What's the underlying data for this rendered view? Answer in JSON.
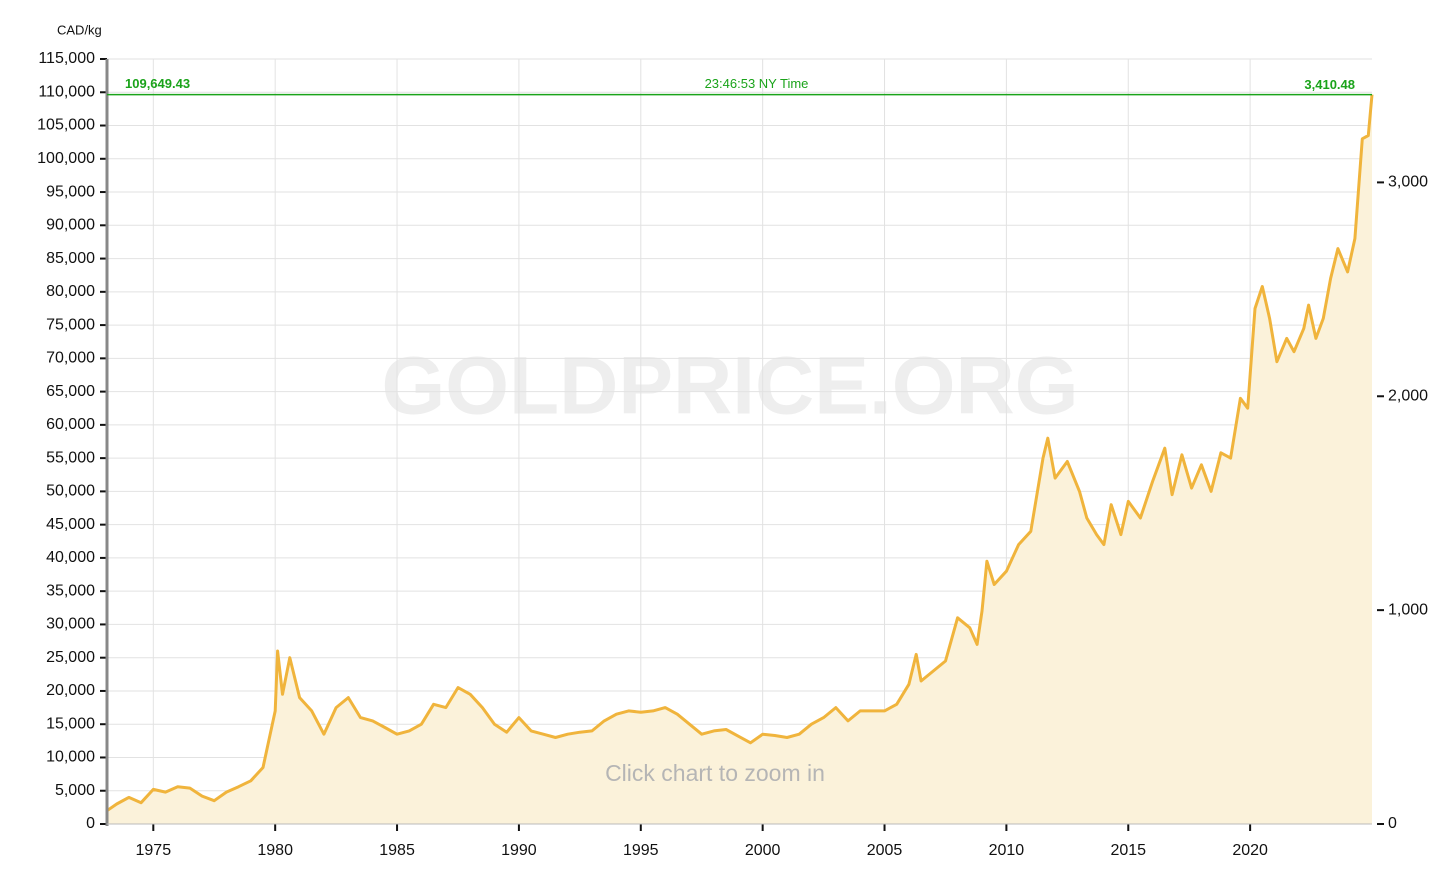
{
  "chart_data": {
    "type": "area",
    "y_label": "CAD/kg",
    "watermark": "GOLDPRICE.ORG",
    "hint": "Click chart to zoom in",
    "time_label": "23:46:53 NY Time",
    "current": {
      "value": 109649.43,
      "label": "109,649.43"
    },
    "current_oz": {
      "value": 3410.48,
      "label": "3,410.48"
    },
    "color": "#f0b43c",
    "fill": "#fbf2da",
    "current_color": "#1aa31a",
    "grid": true,
    "xlim": [
      1973.1,
      2025.0
    ],
    "xticks": [
      1975,
      1980,
      1985,
      1990,
      1995,
      2000,
      2005,
      2010,
      2015,
      2020
    ],
    "ylim": [
      0,
      115000
    ],
    "yticks": [
      0,
      {
        "value": 5000,
        "label": "5,000"
      },
      {
        "value": 10000,
        "label": "10,000"
      },
      {
        "value": 15000,
        "label": "15,000"
      },
      {
        "value": 20000,
        "label": "20,000"
      },
      {
        "value": 25000,
        "label": "25,000"
      },
      {
        "value": 30000,
        "label": "30,000"
      },
      {
        "value": 35000,
        "label": "35,000"
      },
      {
        "value": 40000,
        "label": "40,000"
      },
      {
        "value": 45000,
        "label": "45,000"
      },
      {
        "value": 50000,
        "label": "50,000"
      },
      {
        "value": 55000,
        "label": "55,000"
      },
      {
        "value": 60000,
        "label": "60,000"
      },
      {
        "value": 65000,
        "label": "65,000"
      },
      {
        "value": 70000,
        "label": "70,000"
      },
      {
        "value": 75000,
        "label": "75,000"
      },
      {
        "value": 80000,
        "label": "80,000"
      },
      {
        "value": 85000,
        "label": "85,000"
      },
      {
        "value": 90000,
        "label": "90,000"
      },
      {
        "value": 95000,
        "label": "95,000"
      },
      {
        "value": 100000,
        "label": "100,000"
      },
      {
        "value": 105000,
        "label": "105,000"
      },
      {
        "value": 110000,
        "label": "110,000"
      },
      {
        "value": 115000,
        "label": "115,000"
      }
    ],
    "y2lim": [
      0,
      3577
    ],
    "y2ticks": [
      0,
      {
        "value": 1000,
        "label": "1,000"
      },
      {
        "value": 2000,
        "label": "2,000"
      },
      {
        "value": 3000,
        "label": "3,000"
      }
    ],
    "x": [
      1973.1,
      1973.5,
      1974.0,
      1974.5,
      1975.0,
      1975.5,
      1976.0,
      1976.5,
      1977.0,
      1977.5,
      1978.0,
      1978.5,
      1979.0,
      1979.5,
      1980.0,
      1980.1,
      1980.3,
      1980.6,
      1981.0,
      1981.5,
      1982.0,
      1982.5,
      1983.0,
      1983.5,
      1984.0,
      1984.5,
      1985.0,
      1985.5,
      1986.0,
      1986.5,
      1987.0,
      1987.5,
      1988.0,
      1988.5,
      1989.0,
      1989.5,
      1990.0,
      1990.5,
      1991.0,
      1991.5,
      1992.0,
      1992.5,
      1993.0,
      1993.5,
      1994.0,
      1994.5,
      1995.0,
      1995.5,
      1996.0,
      1996.5,
      1997.0,
      1997.5,
      1998.0,
      1998.5,
      1999.0,
      1999.5,
      2000.0,
      2000.5,
      2001.0,
      2001.5,
      2002.0,
      2002.5,
      2003.0,
      2003.5,
      2004.0,
      2004.5,
      2005.0,
      2005.5,
      2006.0,
      2006.3,
      2006.5,
      2007.0,
      2007.5,
      2008.0,
      2008.5,
      2008.8,
      2009.0,
      2009.2,
      2009.5,
      2010.0,
      2010.5,
      2011.0,
      2011.5,
      2011.7,
      2012.0,
      2012.5,
      2013.0,
      2013.3,
      2013.7,
      2014.0,
      2014.3,
      2014.7,
      2015.0,
      2015.5,
      2016.0,
      2016.5,
      2016.8,
      2017.2,
      2017.6,
      2018.0,
      2018.4,
      2018.8,
      2019.2,
      2019.6,
      2019.9,
      2020.2,
      2020.5,
      2020.8,
      2021.1,
      2021.5,
      2021.8,
      2022.2,
      2022.4,
      2022.7,
      2023.0,
      2023.3,
      2023.6,
      2024.0,
      2024.3,
      2024.6,
      2024.85,
      2025.0
    ],
    "values": [
      2000,
      3000,
      4000,
      3200,
      5200,
      4800,
      5600,
      5400,
      4200,
      3500,
      4800,
      5600,
      6500,
      8500,
      17000,
      26000,
      19500,
      25000,
      19000,
      17000,
      13500,
      17500,
      19000,
      16000,
      15500,
      14500,
      13500,
      14000,
      15000,
      18000,
      17500,
      20500,
      19500,
      17500,
      15000,
      13800,
      16000,
      14000,
      13500,
      13000,
      13500,
      13800,
      14000,
      15500,
      16500,
      17000,
      16800,
      17000,
      17500,
      16500,
      15000,
      13500,
      14000,
      14200,
      13200,
      12200,
      13500,
      13300,
      13000,
      13500,
      15000,
      16000,
      17500,
      15500,
      17000,
      17000,
      17000,
      18000,
      21000,
      25500,
      21500,
      23000,
      24500,
      31000,
      29500,
      27000,
      32000,
      39500,
      36000,
      38000,
      42000,
      44000,
      55000,
      58000,
      52000,
      54500,
      50000,
      46000,
      43500,
      42000,
      48000,
      43500,
      48500,
      46000,
      51500,
      56500,
      49500,
      55500,
      50500,
      54000,
      50000,
      55800,
      55000,
      64000,
      62500,
      77500,
      80800,
      76000,
      69500,
      73000,
      71000,
      74500,
      78000,
      73000,
      76000,
      82000,
      86500,
      83000,
      88000,
      103000,
      103500,
      109649.43
    ]
  }
}
